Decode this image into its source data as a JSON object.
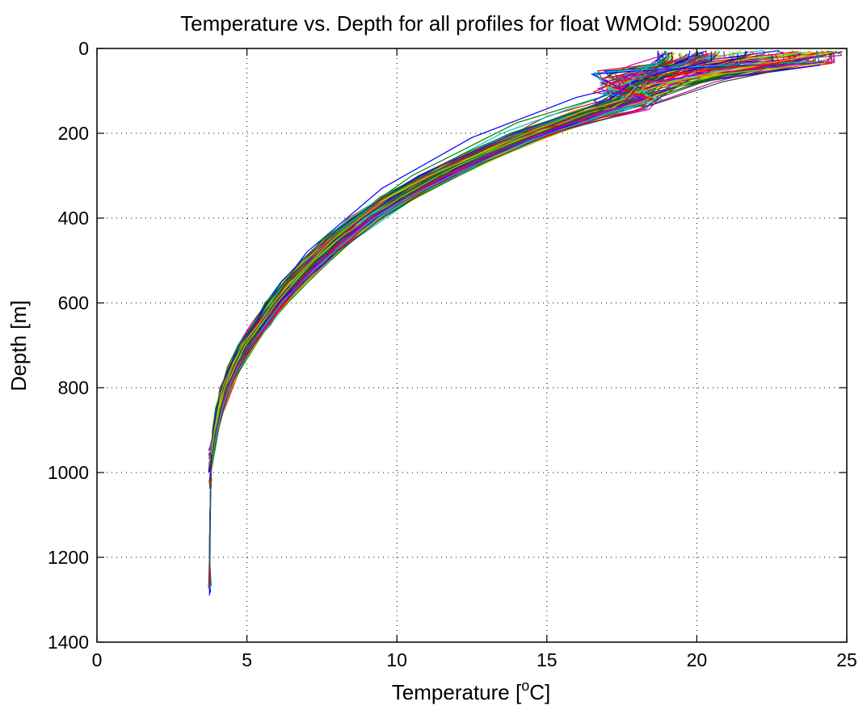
{
  "chart_data": {
    "type": "line",
    "title": "Temperature vs. Depth for all profiles for float WMOId: 5900200",
    "xlabel": "Temperature [",
    "xlabel_sup": "o",
    "xlabel_tail": "C]",
    "ylabel": "Depth [m]",
    "xlim": [
      0,
      25
    ],
    "ylim": [
      0,
      1400
    ],
    "y_reversed": true,
    "grid": true,
    "x_ticks": [
      "0",
      "5",
      "10",
      "15",
      "20",
      "25"
    ],
    "y_ticks": [
      "0",
      "200",
      "400",
      "600",
      "800",
      "1000",
      "1200",
      "1400"
    ],
    "x_tick_values": [
      0,
      5,
      10,
      15,
      20,
      25
    ],
    "y_tick_values": [
      0,
      200,
      400,
      600,
      800,
      1000,
      1200,
      1400
    ],
    "colors": [
      "#0000ff",
      "#008000",
      "#ff0000",
      "#00bfbf",
      "#bf00bf",
      "#bfbf00",
      "#404040"
    ],
    "profile_count": 105,
    "series": [
      {
        "values": [
          [
            18.7,
            5
          ],
          [
            18.7,
            70
          ],
          [
            16.0,
            115
          ],
          [
            12.5,
            210
          ],
          [
            9.5,
            330
          ],
          [
            7.0,
            480
          ],
          [
            5.5,
            620
          ],
          [
            4.5,
            760
          ],
          [
            4.0,
            880
          ],
          [
            3.8,
            1000
          ],
          [
            3.75,
            1290
          ]
        ]
      },
      {
        "values": [
          [
            20.0,
            5
          ],
          [
            20.0,
            60
          ],
          [
            17.5,
            100
          ],
          [
            14.0,
            175
          ],
          [
            10.5,
            300
          ],
          [
            7.5,
            450
          ],
          [
            5.8,
            600
          ],
          [
            4.6,
            760
          ],
          [
            4.1,
            880
          ],
          [
            3.8,
            1000
          ]
        ]
      },
      {
        "values": [
          [
            24.5,
            10
          ],
          [
            24.5,
            35
          ],
          [
            18.5,
            90
          ],
          [
            15.0,
            160
          ],
          [
            11.5,
            290
          ],
          [
            8.0,
            450
          ],
          [
            6.0,
            600
          ],
          [
            4.8,
            750
          ],
          [
            4.2,
            860
          ],
          [
            3.8,
            960
          ]
        ]
      },
      {
        "values": [
          [
            22.0,
            10
          ],
          [
            22.0,
            45
          ],
          [
            17.0,
            110
          ],
          [
            13.5,
            200
          ],
          [
            10.0,
            330
          ],
          [
            7.2,
            490
          ],
          [
            5.4,
            640
          ],
          [
            4.4,
            780
          ],
          [
            3.9,
            900
          ],
          [
            3.75,
            1040
          ]
        ]
      }
    ]
  }
}
